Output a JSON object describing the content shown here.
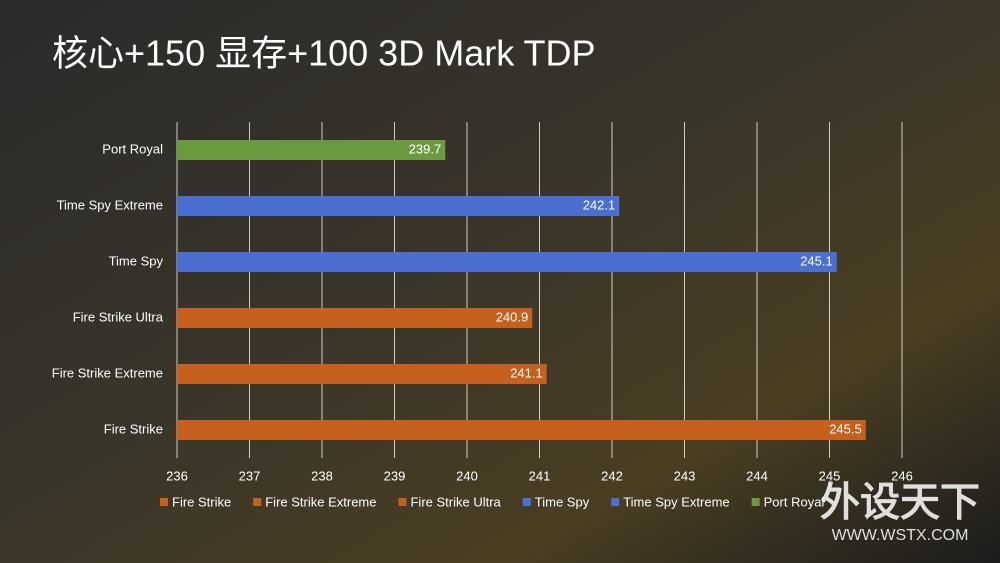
{
  "chart_data": {
    "type": "bar",
    "orientation": "horizontal",
    "title": "核心+150 显存+100 3D Mark TDP",
    "categories": [
      "Fire Strike",
      "Fire Strike Extreme",
      "Fire Strike Ultra",
      "Time Spy",
      "Time Spy Extreme",
      "Port Royal"
    ],
    "values": [
      245.5,
      241.1,
      240.9,
      245.1,
      242.1,
      239.7
    ],
    "colors": [
      "#c5601f",
      "#c5601f",
      "#c5601f",
      "#4a6fd0",
      "#4a6fd0",
      "#6b9a40"
    ],
    "xlim": [
      236,
      246
    ],
    "xticks": [
      236,
      237,
      238,
      239,
      240,
      241,
      242,
      243,
      244,
      245,
      246
    ],
    "grid": true,
    "legend": "bottom",
    "watermark": "外设天下",
    "watermark_url": "WWW.WSTX.COM"
  }
}
